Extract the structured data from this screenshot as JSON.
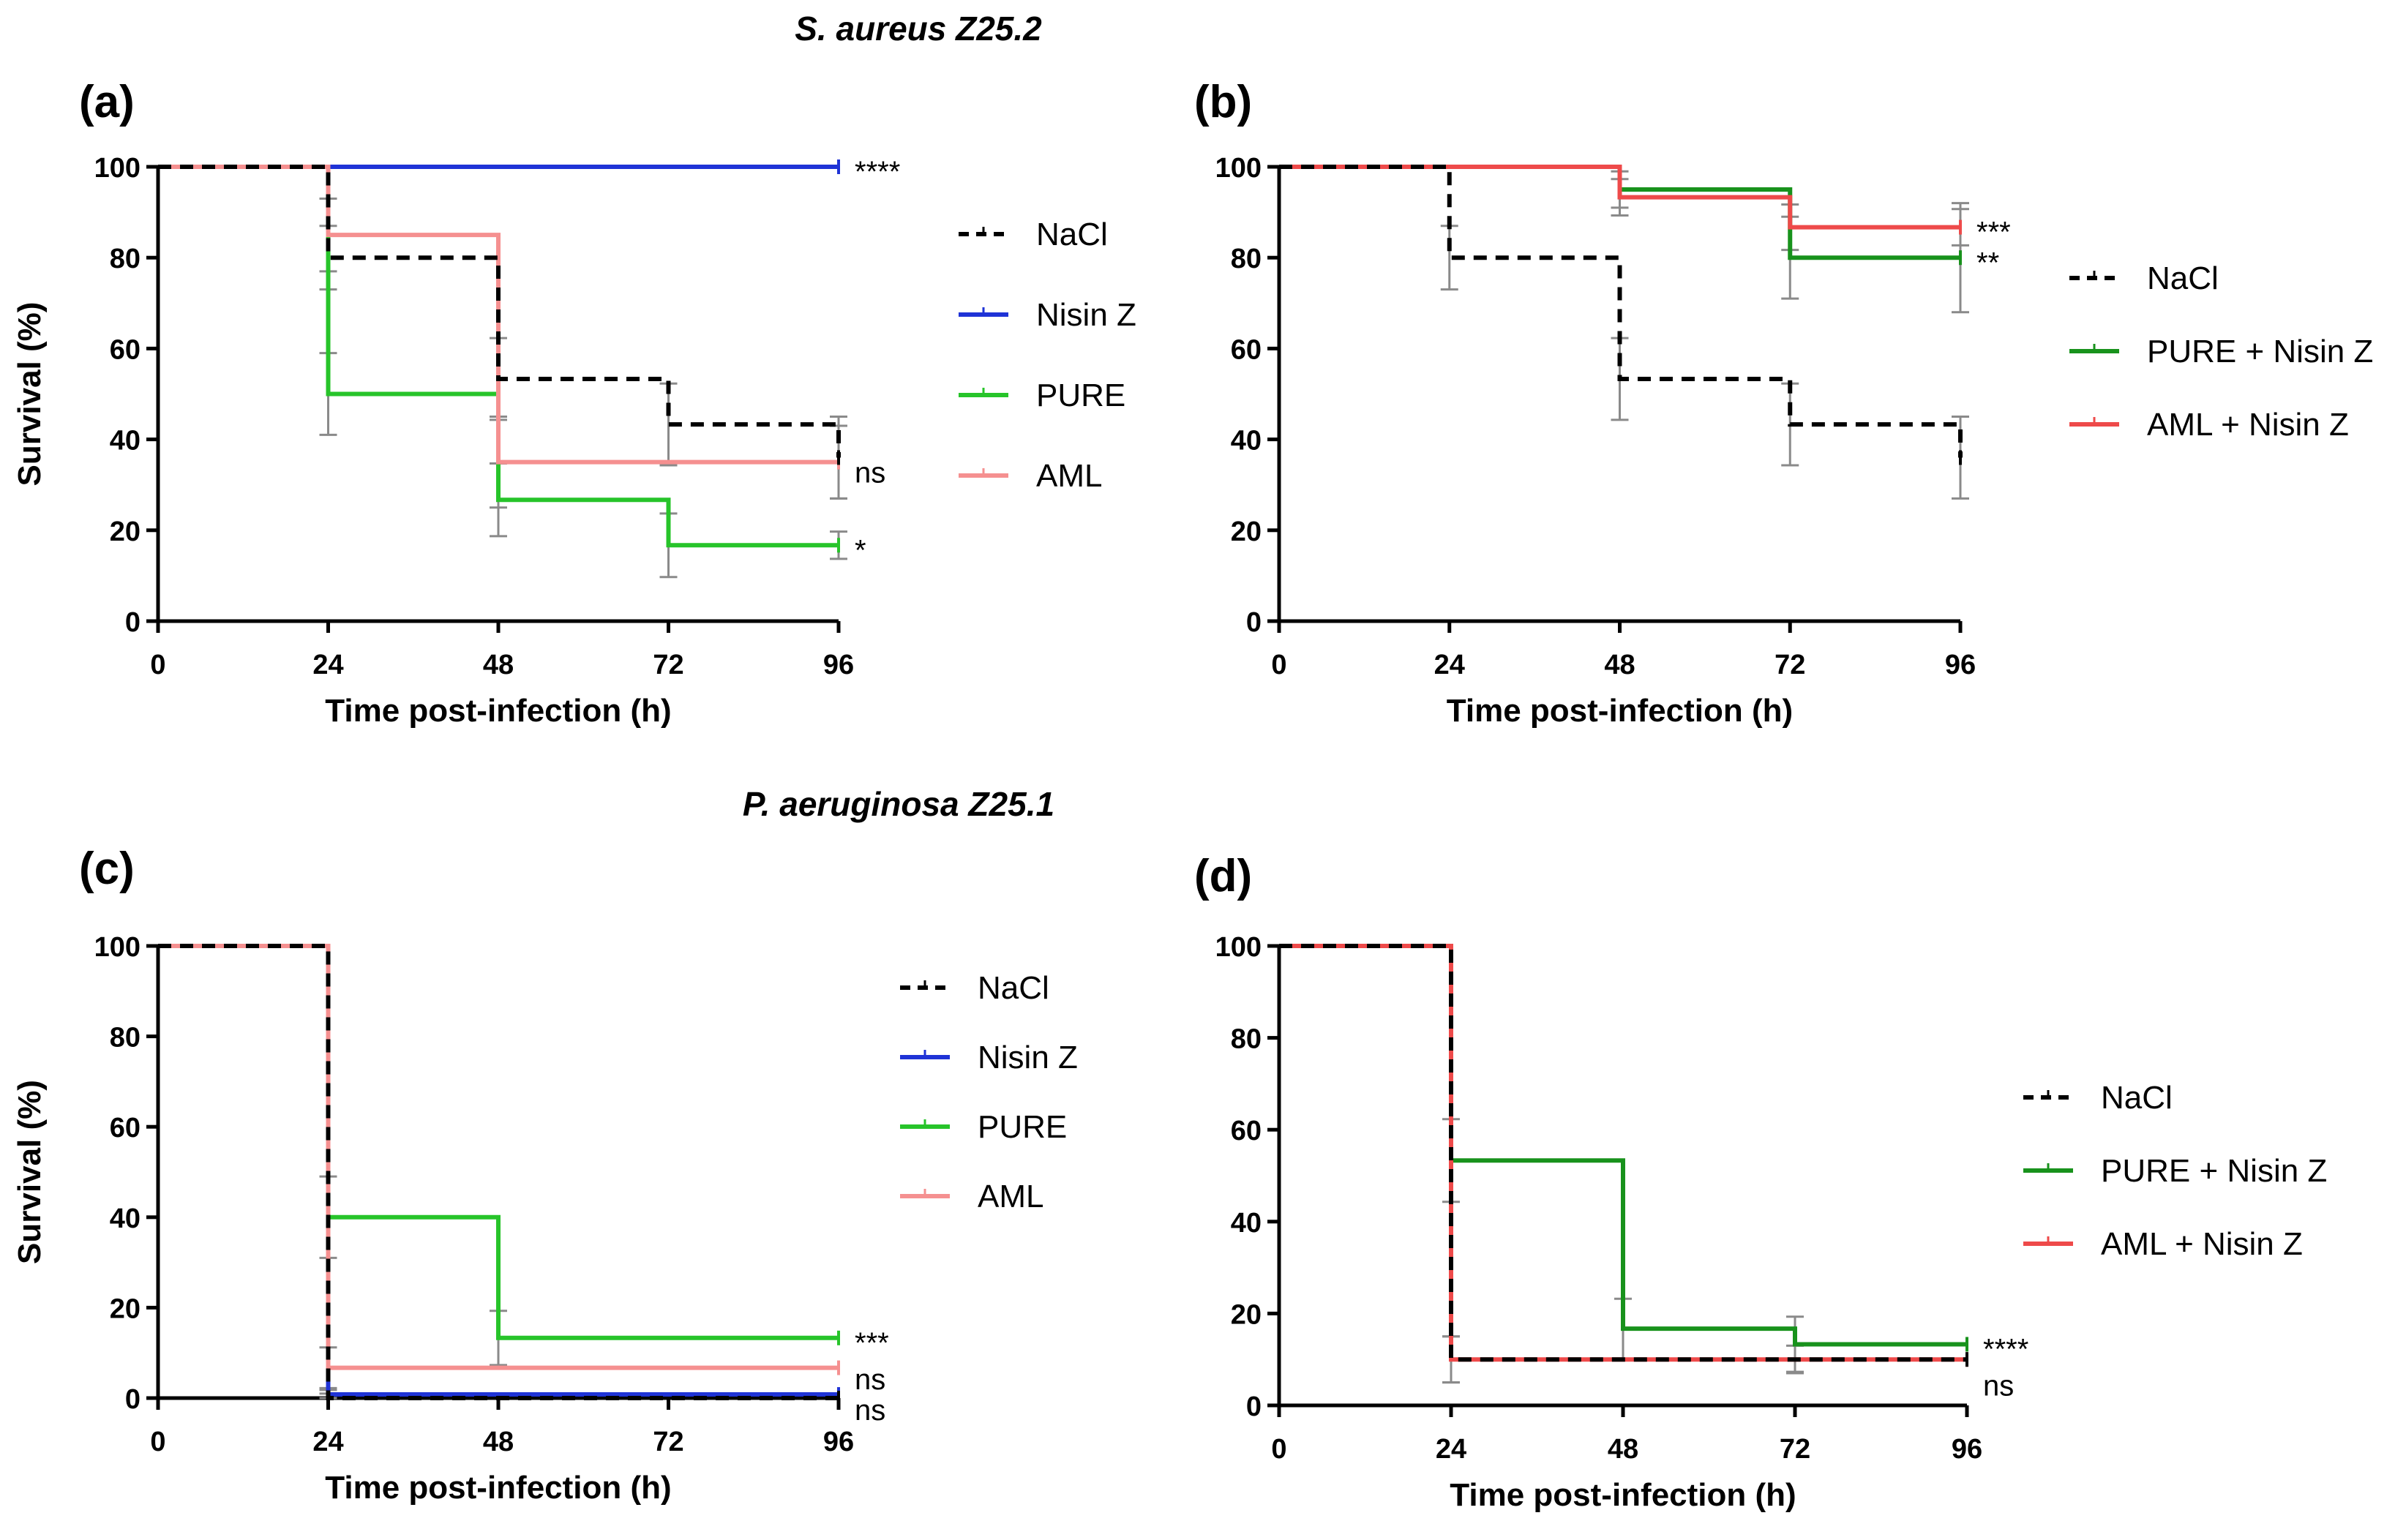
{
  "headers": [
    "S. aureus Z25.2",
    "P. aeruginosa Z25.1"
  ],
  "colors": {
    "NaCl": "#000000",
    "Nisin Z": "#1f33d6",
    "PURE": "#27c42a",
    "AML": "#f59090",
    "PURE + Nisin Z": "#18921c",
    "AML + Nisin Z": "#ee4a4a",
    "errorbar": "#8a8a8a"
  },
  "chart_data": [
    {
      "panel": "(a)",
      "type": "line",
      "style": "step",
      "header": "S. aureus Z25.2",
      "xlabel": "Time post-infection (h)",
      "ylabel": "Survival (%)",
      "xlim": [
        0,
        96
      ],
      "ylim": [
        0,
        100
      ],
      "xticks": [
        0,
        24,
        48,
        72,
        96
      ],
      "yticks": [
        0,
        20,
        40,
        60,
        80,
        100
      ],
      "series": [
        {
          "name": "NaCl",
          "dashed": true,
          "x": [
            0,
            24,
            48,
            72,
            96
          ],
          "y": [
            100,
            80,
            53.3,
            43.3,
            36
          ],
          "errors": [
            0,
            7,
            9,
            9,
            9
          ],
          "sig": ""
        },
        {
          "name": "Nisin Z",
          "dashed": false,
          "x": [
            0,
            24,
            48,
            72,
            96
          ],
          "y": [
            100,
            100,
            100,
            100,
            100
          ],
          "errors": [
            0,
            0,
            0,
            0,
            0
          ],
          "sig": "****"
        },
        {
          "name": "PURE",
          "dashed": false,
          "x": [
            0,
            24,
            48,
            72,
            96
          ],
          "y": [
            100,
            50,
            26.7,
            16.7,
            16.7
          ],
          "errors": [
            0,
            9,
            8,
            7,
            3
          ],
          "sig": "*"
        },
        {
          "name": "AML",
          "dashed": false,
          "x": [
            0,
            24,
            48,
            72,
            96
          ],
          "y": [
            100,
            85,
            35,
            35,
            35
          ],
          "errors": [
            0,
            8,
            10,
            0,
            8
          ],
          "sig": "ns"
        }
      ],
      "legend": [
        "NaCl",
        "Nisin Z",
        "PURE",
        "AML"
      ]
    },
    {
      "panel": "(b)",
      "type": "line",
      "style": "step",
      "header": "S. aureus Z25.2",
      "xlabel": "Time post-infection (h)",
      "ylabel": "",
      "xlim": [
        0,
        96
      ],
      "ylim": [
        0,
        100
      ],
      "xticks": [
        0,
        24,
        48,
        72,
        96
      ],
      "yticks": [
        0,
        20,
        40,
        60,
        80,
        100
      ],
      "series": [
        {
          "name": "NaCl",
          "dashed": true,
          "x": [
            0,
            24,
            48,
            72,
            96
          ],
          "y": [
            100,
            80,
            53.3,
            43.3,
            36
          ],
          "errors": [
            0,
            7,
            9,
            9,
            9
          ],
          "sig": ""
        },
        {
          "name": "PURE + Nisin Z",
          "dashed": false,
          "x": [
            0,
            24,
            48,
            72,
            96
          ],
          "y": [
            100,
            100,
            95,
            80,
            80
          ],
          "errors": [
            0,
            0,
            4,
            9,
            12
          ],
          "sig": "**"
        },
        {
          "name": "AML + Nisin Z",
          "dashed": false,
          "x": [
            0,
            24,
            48,
            72,
            96
          ],
          "y": [
            100,
            100,
            93.3,
            86.7,
            86.7
          ],
          "errors": [
            0,
            0,
            4,
            5,
            4
          ],
          "sig": "***"
        }
      ],
      "legend": [
        "NaCl",
        "PURE + Nisin Z",
        "AML + Nisin Z"
      ]
    },
    {
      "panel": "(c)",
      "type": "line",
      "style": "step",
      "header": "P. aeruginosa Z25.1",
      "xlabel": "Time post-infection (h)",
      "ylabel": "Survival (%)",
      "xlim": [
        0,
        96
      ],
      "ylim": [
        0,
        100
      ],
      "xticks": [
        0,
        24,
        48,
        72,
        96
      ],
      "yticks": [
        0,
        20,
        40,
        60,
        80,
        100
      ],
      "series": [
        {
          "name": "NaCl",
          "dashed": true,
          "x": [
            0,
            24,
            48,
            72,
            96
          ],
          "y": [
            100,
            0,
            0,
            0,
            0
          ],
          "errors": [
            0,
            1,
            0,
            0,
            0
          ],
          "sig": ""
        },
        {
          "name": "Nisin Z",
          "dashed": false,
          "x": [
            0,
            24,
            48,
            72,
            96
          ],
          "y": [
            100,
            0.8,
            0.8,
            0.8,
            0.8
          ],
          "errors": [
            0,
            1,
            0,
            0,
            0
          ],
          "sig": "ns"
        },
        {
          "name": "PURE",
          "dashed": false,
          "x": [
            0,
            24,
            48,
            72,
            96
          ],
          "y": [
            100,
            40,
            13.3,
            13.3,
            13.3
          ],
          "errors": [
            0,
            9,
            6,
            0,
            0
          ],
          "sig": "***"
        },
        {
          "name": "AML",
          "dashed": false,
          "x": [
            0,
            24,
            48,
            72,
            96
          ],
          "y": [
            100,
            6.7,
            6.7,
            6.7,
            6.7
          ],
          "errors": [
            0,
            4.5,
            0,
            0,
            0
          ],
          "sig": "ns"
        }
      ],
      "legend": [
        "NaCl",
        "Nisin Z",
        "PURE",
        "AML"
      ]
    },
    {
      "panel": "(d)",
      "type": "line",
      "style": "step",
      "header": "P. aeruginosa Z25.1",
      "xlabel": "Time post-infection (h)",
      "ylabel": "",
      "xlim": [
        0,
        96
      ],
      "ylim": [
        0,
        100
      ],
      "xticks": [
        0,
        24,
        48,
        72,
        96
      ],
      "yticks": [
        0,
        20,
        40,
        60,
        80,
        100
      ],
      "series": [
        {
          "name": "NaCl",
          "dashed": true,
          "x": [
            0,
            24,
            48,
            72,
            96
          ],
          "y": [
            100,
            10,
            10,
            10,
            10
          ],
          "errors": [
            0,
            5,
            0,
            0,
            0
          ],
          "sig": ""
        },
        {
          "name": "PURE + Nisin Z",
          "dashed": false,
          "x": [
            0,
            24,
            48,
            72,
            96
          ],
          "y": [
            100,
            53.3,
            16.7,
            13.3,
            13.3
          ],
          "errors": [
            0,
            9,
            6.5,
            6,
            0
          ],
          "sig": "****"
        },
        {
          "name": "AML + Nisin Z",
          "dashed": false,
          "x": [
            0,
            24,
            48,
            72,
            96
          ],
          "y": [
            100,
            10,
            10,
            10,
            10
          ],
          "errors": [
            0,
            5,
            0,
            3,
            0
          ],
          "sig": "ns"
        }
      ],
      "legend": [
        "NaCl",
        "PURE + Nisin Z",
        "AML + Nisin Z"
      ]
    }
  ]
}
